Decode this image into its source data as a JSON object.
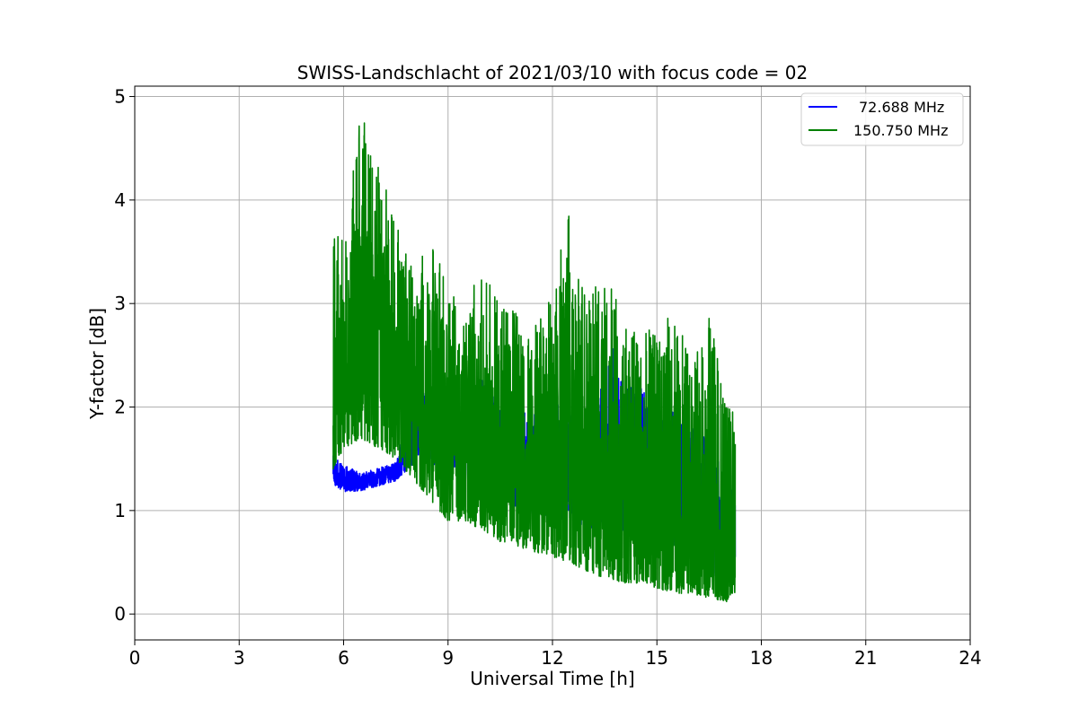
{
  "chart_data": {
    "type": "line",
    "title": "SWISS-Landschlacht of 2021/03/10 with focus code = 02",
    "xlabel": "Universal Time [h]",
    "ylabel": "Y-factor [dB]",
    "xlim": [
      0,
      24
    ],
    "ylim": [
      -0.25,
      5.1
    ],
    "xticks": [
      0,
      3,
      6,
      9,
      12,
      15,
      18,
      21,
      24
    ],
    "yticks": [
      0,
      1,
      2,
      3,
      4,
      5
    ],
    "grid": true,
    "legend_position": "top-right",
    "series": [
      {
        "name": "72.688 MHz",
        "color": "#0000ff",
        "x": [
          5.7,
          6.0,
          6.5,
          7.0,
          7.5,
          8.0,
          8.5,
          9.0,
          9.5,
          10.0,
          10.5,
          11.0,
          11.5,
          12.0,
          12.5,
          13.0,
          13.5,
          13.8,
          14.0,
          14.5,
          15.0,
          15.5,
          16.0,
          16.5,
          17.0,
          17.25
        ],
        "y_low": [
          1.2,
          1.12,
          1.15,
          1.2,
          1.25,
          1.3,
          1.3,
          1.2,
          1.1,
          1.0,
          0.8,
          0.8,
          0.75,
          0.7,
          0.65,
          0.6,
          0.55,
          0.55,
          0.5,
          0.45,
          0.4,
          0.35,
          0.3,
          0.02,
          0.2,
          0.4
        ],
        "y_high": [
          1.6,
          1.5,
          1.4,
          1.45,
          1.5,
          2.3,
          2.3,
          2.4,
          2.4,
          2.5,
          2.3,
          2.2,
          2.2,
          2.3,
          2.2,
          2.1,
          2.6,
          3.0,
          2.5,
          2.5,
          2.4,
          2.3,
          2.2,
          2.0,
          1.6,
          1.2
        ]
      },
      {
        "name": "150.750 MHz",
        "color": "#008000",
        "x": [
          5.7,
          6.0,
          6.5,
          7.0,
          7.5,
          8.0,
          8.5,
          9.0,
          9.5,
          10.0,
          10.5,
          11.0,
          11.5,
          12.0,
          12.5,
          13.0,
          13.5,
          14.0,
          14.5,
          15.0,
          15.5,
          16.0,
          16.5,
          17.0,
          17.25
        ],
        "y_low": [
          1.4,
          1.6,
          1.7,
          1.6,
          1.5,
          1.3,
          1.1,
          0.9,
          0.9,
          0.8,
          0.7,
          0.65,
          0.6,
          0.55,
          0.5,
          0.4,
          0.35,
          0.3,
          0.3,
          0.25,
          0.2,
          0.2,
          0.15,
          0.12,
          0.2
        ],
        "y_high": [
          3.7,
          3.6,
          4.85,
          4.4,
          3.8,
          3.3,
          3.6,
          3.2,
          3.1,
          3.3,
          3.0,
          2.9,
          2.8,
          3.1,
          4.0,
          3.0,
          3.35,
          2.9,
          2.7,
          2.8,
          2.9,
          2.5,
          2.9,
          2.1,
          1.9
        ]
      }
    ]
  }
}
